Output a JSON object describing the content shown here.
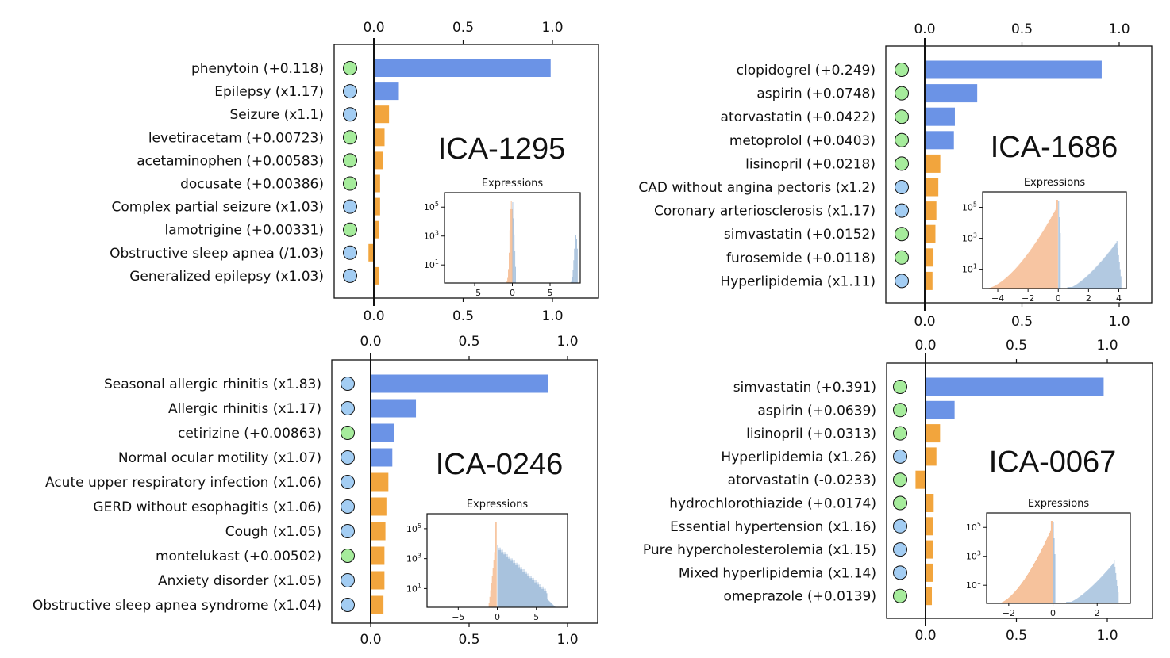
{
  "chart_data": [
    {
      "type": "bar",
      "id": "ICA-1295",
      "title": "ICA-1295",
      "orientation": "horizontal",
      "xlim": [
        -0.22,
        1.27
      ],
      "xticks": [
        0.0,
        0.5,
        1.0
      ],
      "tick_labels": [
        "0.0",
        "0.5",
        "1.0"
      ],
      "categories": [
        "phenytoin (+0.118)",
        "Epilepsy (x1.17)",
        "Seizure (x1.1)",
        "levetiracetam (+0.00723)",
        "acetaminophen (+0.00583)",
        "docusate (+0.00386)",
        "Complex partial seizure (x1.03)",
        "lamotrigine (+0.00331)",
        "Obstructive sleep apnea (/1.03)",
        "Generalized epilepsy (x1.03)"
      ],
      "values": [
        0.99,
        0.14,
        0.085,
        0.06,
        0.05,
        0.035,
        0.035,
        0.03,
        -0.03,
        0.03
      ],
      "kinds": [
        "drug",
        "condition",
        "condition",
        "drug",
        "drug",
        "drug",
        "condition",
        "drug",
        "condition",
        "condition"
      ],
      "inset": {
        "title": "Expressions",
        "xticks": [
          -5,
          0,
          5
        ],
        "xtick_labels": [
          "−5",
          "0",
          "5"
        ],
        "yticks": [
          "10^1",
          "10^3",
          "10^5"
        ],
        "xlim": [
          -9,
          9
        ]
      }
    },
    {
      "type": "bar",
      "id": "ICA-1686",
      "title": "ICA-1686",
      "orientation": "horizontal",
      "xlim": [
        -0.2,
        1.15
      ],
      "xticks": [
        0.0,
        0.5,
        1.0
      ],
      "tick_labels": [
        "0.0",
        "0.5",
        "1.0"
      ],
      "categories": [
        "clopidogrel (+0.249)",
        "aspirin (+0.0748)",
        "atorvastatin (+0.0422)",
        "metoprolol (+0.0403)",
        "lisinopril (+0.0218)",
        "CAD without angina pectoris (x1.2)",
        "Coronary arteriosclerosis (x1.17)",
        "simvastatin (+0.0152)",
        "furosemide (+0.0118)",
        "Hyperlipidemia (x1.11)"
      ],
      "values": [
        0.91,
        0.27,
        0.155,
        0.15,
        0.08,
        0.07,
        0.06,
        0.055,
        0.045,
        0.04
      ],
      "kinds": [
        "drug",
        "drug",
        "drug",
        "drug",
        "drug",
        "condition",
        "condition",
        "drug",
        "drug",
        "condition"
      ],
      "inset": {
        "title": "Expressions",
        "xticks": [
          -4,
          -2,
          0,
          2,
          4
        ],
        "xtick_labels": [
          "−4",
          "−2",
          "0",
          "2",
          "4"
        ],
        "yticks": [
          "10^1",
          "10^3",
          "10^5"
        ],
        "xlim": [
          -5,
          4.5
        ]
      }
    },
    {
      "type": "bar",
      "id": "ICA-0246",
      "title": "ICA-0246",
      "orientation": "horizontal",
      "xlim": [
        -0.2,
        1.16
      ],
      "xticks": [
        0.0,
        0.5,
        1.0
      ],
      "tick_labels": [
        "0.0",
        "0.5",
        "1.0"
      ],
      "categories": [
        "Seasonal allergic rhinitis (x1.83)",
        "Allergic rhinitis (x1.17)",
        "cetirizine (+0.00863)",
        "Normal ocular motility (x1.07)",
        "Acute upper respiratory infection (x1.06)",
        "GERD without esophagitis (x1.06)",
        "Cough (x1.05)",
        "montelukast (+0.00502)",
        "Anxiety disorder (x1.05)",
        "Obstructive sleep apnea syndrome (x1.04)"
      ],
      "values": [
        0.9,
        0.23,
        0.12,
        0.11,
        0.09,
        0.08,
        0.075,
        0.07,
        0.07,
        0.065
      ],
      "kinds": [
        "condition",
        "condition",
        "drug",
        "condition",
        "condition",
        "condition",
        "condition",
        "drug",
        "condition",
        "condition"
      ],
      "inset": {
        "title": "Expressions",
        "xticks": [
          -5,
          0,
          5
        ],
        "xtick_labels": [
          "−5",
          "0",
          "5"
        ],
        "yticks": [
          "10^1",
          "10^3",
          "10^5"
        ],
        "xlim": [
          -9,
          9
        ]
      }
    },
    {
      "type": "bar",
      "id": "ICA-0067",
      "title": "ICA-0067",
      "orientation": "horizontal",
      "xlim": [
        -0.2,
        1.25
      ],
      "xticks": [
        0.0,
        0.5,
        1.0
      ],
      "tick_labels": [
        "0.0",
        "0.5",
        "1.0"
      ],
      "categories": [
        "simvastatin (+0.391)",
        "aspirin (+0.0639)",
        "lisinopril (+0.0313)",
        "Hyperlipidemia (x1.26)",
        "atorvastatin (-0.0233)",
        "hydrochlorothiazide (+0.0174)",
        "Essential hypertension (x1.16)",
        "Pure hypercholesterolemia (x1.15)",
        "Mixed hyperlipidemia (x1.14)",
        "omeprazole (+0.0139)"
      ],
      "values": [
        0.98,
        0.16,
        0.08,
        0.06,
        -0.055,
        0.045,
        0.04,
        0.04,
        0.04,
        0.035
      ],
      "kinds": [
        "drug",
        "drug",
        "drug",
        "condition",
        "drug",
        "drug",
        "condition",
        "condition",
        "condition",
        "drug"
      ],
      "inset": {
        "title": "Expressions",
        "xticks": [
          -2,
          0,
          2
        ],
        "xtick_labels": [
          "−2",
          "0",
          "2"
        ],
        "yticks": [
          "10^1",
          "10^3",
          "10^5"
        ],
        "xlim": [
          -3,
          3.5
        ]
      }
    }
  ],
  "colors": {
    "bar_primary": "#6B93E6",
    "bar_secondary": "#F2A53D",
    "drug_marker": "#A6EC9C",
    "condition_marker": "#A3CDF3",
    "hist_negative": "#F6BE95",
    "hist_positive": "#A8C2DD",
    "axis": "#111111"
  }
}
